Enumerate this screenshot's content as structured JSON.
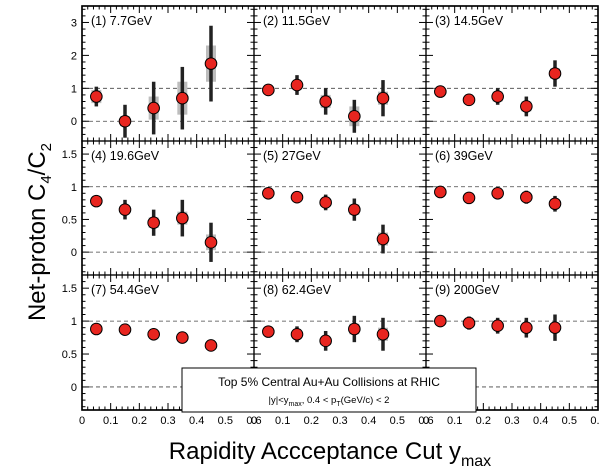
{
  "figure": {
    "ylabel_main": "Net-proton C",
    "ylabel_sub1": "4",
    "ylabel_sep": "/C",
    "ylabel_sub2": "2",
    "xlabel_main": "Rapidity Accceptance Cut y",
    "xlabel_sub": "max",
    "legend": {
      "line1": "Top 5% Central Au+Au Collisions at RHIC",
      "line2_a": "|y|<y",
      "line2_b": "max",
      "line2_c": ", 0.4 < p",
      "line2_d": "T",
      "line2_e": "(GeV/c) < 2"
    }
  },
  "colors": {
    "marker": "#e8251f",
    "stat_bar": "#222222",
    "sys_band": "#bdbdbd",
    "dashed": "#444444",
    "frame": "#000000"
  },
  "chart_data": {
    "type": "scatter",
    "xlabel": "Rapidity Accceptance Cut y_max",
    "ylabel": "Net-proton C4/C2",
    "xlim": [
      0,
      0.6
    ],
    "x_ticks": [
      "0",
      "0.1",
      "0.2",
      "0.3",
      "0.4",
      "0.5",
      "0.6"
    ],
    "x_tick_values": [
      0,
      0.1,
      0.2,
      0.3,
      0.4,
      0.5,
      0.6
    ],
    "dashed_lines": [
      0,
      1
    ],
    "rows": [
      {
        "ylim": [
          -0.6,
          3.5
        ],
        "ticks": [
          "0",
          "1",
          "2",
          "3"
        ],
        "tick_values": [
          0,
          1,
          2,
          3
        ]
      },
      {
        "ylim": [
          -0.35,
          1.7
        ],
        "ticks": [
          "0",
          "0.5",
          "1",
          "1.5"
        ],
        "tick_values": [
          0,
          0.5,
          1,
          1.5
        ]
      },
      {
        "ylim": [
          -0.35,
          1.7
        ],
        "ticks": [
          "0",
          "0.5",
          "1",
          "1.5"
        ],
        "tick_values": [
          0,
          0.5,
          1,
          1.5
        ]
      }
    ],
    "panels": [
      {
        "label": "(1) 7.7GeV",
        "x": [
          0.05,
          0.15,
          0.25,
          0.35,
          0.45
        ],
        "y": [
          0.75,
          0.0,
          0.4,
          0.7,
          1.75
        ],
        "stat": [
          0.3,
          0.5,
          0.8,
          0.95,
          1.15
        ],
        "sys": [
          0.2,
          0.15,
          0.35,
          0.5,
          0.55
        ]
      },
      {
        "label": "(2) 11.5GeV",
        "x": [
          0.05,
          0.15,
          0.25,
          0.35,
          0.45
        ],
        "y": [
          0.95,
          1.1,
          0.6,
          0.15,
          0.7
        ],
        "stat": [
          0.1,
          0.3,
          0.4,
          0.5,
          0.55
        ],
        "sys": [
          0.08,
          0.12,
          0.2,
          0.3,
          0.2
        ]
      },
      {
        "label": "(3) 14.5GeV",
        "x": [
          0.05,
          0.15,
          0.25,
          0.35,
          0.45
        ],
        "y": [
          0.9,
          0.65,
          0.75,
          0.45,
          1.45
        ],
        "stat": [
          0.08,
          0.1,
          0.25,
          0.3,
          0.4
        ],
        "sys": [
          0.05,
          0.08,
          0.15,
          0.15,
          0.15
        ]
      },
      {
        "label": "(4) 19.6GeV",
        "x": [
          0.05,
          0.15,
          0.25,
          0.35,
          0.45
        ],
        "y": [
          0.78,
          0.65,
          0.45,
          0.52,
          0.15
        ],
        "stat": [
          0.05,
          0.15,
          0.2,
          0.28,
          0.3
        ],
        "sys": [
          0.04,
          0.05,
          0.08,
          0.1,
          0.12
        ]
      },
      {
        "label": "(5) 27GeV",
        "x": [
          0.05,
          0.15,
          0.25,
          0.35,
          0.45
        ],
        "y": [
          0.9,
          0.84,
          0.76,
          0.65,
          0.2
        ],
        "stat": [
          0.06,
          0.08,
          0.12,
          0.17,
          0.22
        ],
        "sys": [
          0.04,
          0.05,
          0.06,
          0.08,
          0.1
        ]
      },
      {
        "label": "(6) 39GeV",
        "x": [
          0.05,
          0.15,
          0.25,
          0.35,
          0.45
        ],
        "y": [
          0.92,
          0.83,
          0.9,
          0.84,
          0.74
        ],
        "stat": [
          0.05,
          0.06,
          0.07,
          0.1,
          0.12
        ],
        "sys": [
          0.03,
          0.04,
          0.04,
          0.05,
          0.06
        ]
      },
      {
        "label": "(7) 54.4GeV",
        "x": [
          0.05,
          0.15,
          0.25,
          0.35,
          0.45
        ],
        "y": [
          0.88,
          0.87,
          0.8,
          0.75,
          0.63
        ],
        "stat": [
          0.04,
          0.04,
          0.05,
          0.06,
          0.07
        ],
        "sys": [
          0.02,
          0.03,
          0.04,
          0.04,
          0.05
        ]
      },
      {
        "label": "(8) 62.4GeV",
        "x": [
          0.05,
          0.15,
          0.25,
          0.35,
          0.45
        ],
        "y": [
          0.84,
          0.8,
          0.7,
          0.88,
          0.8
        ],
        "stat": [
          0.05,
          0.12,
          0.15,
          0.2,
          0.25
        ],
        "sys": [
          0.03,
          0.05,
          0.06,
          0.08,
          0.1
        ]
      },
      {
        "label": "(9) 200GeV",
        "x": [
          0.05,
          0.15,
          0.25,
          0.35,
          0.45
        ],
        "y": [
          1.0,
          0.97,
          0.93,
          0.9,
          0.9
        ],
        "stat": [
          0.05,
          0.1,
          0.12,
          0.15,
          0.2
        ],
        "sys": [
          0.03,
          0.04,
          0.05,
          0.06,
          0.07
        ]
      }
    ]
  }
}
